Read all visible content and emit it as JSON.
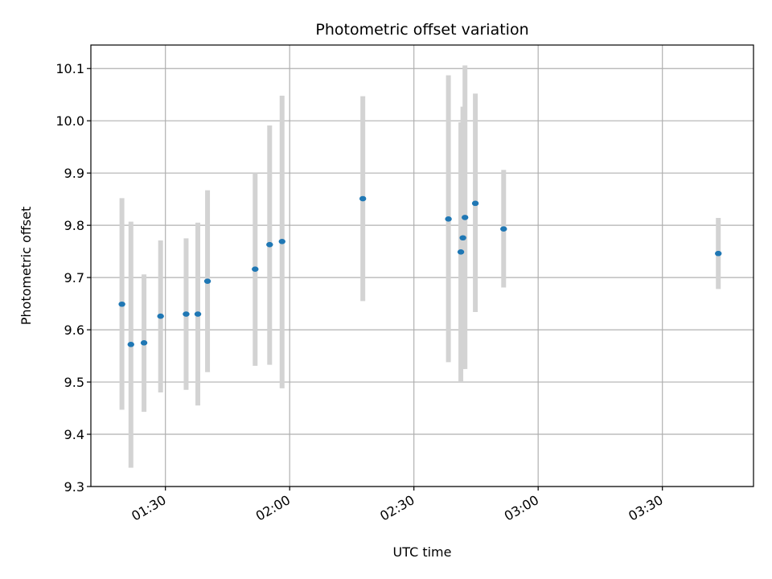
{
  "chart_data": {
    "type": "scatter",
    "title": "Photometric offset variation",
    "xlabel": "UTC time",
    "ylabel": "Photometric offset",
    "x_ticks": [
      "01:30",
      "02:00",
      "02:30",
      "03:00",
      "03:30"
    ],
    "y_ticks": [
      "9.3",
      "9.4",
      "9.5",
      "9.6",
      "9.7",
      "9.8",
      "9.9",
      "10.0",
      "10.1"
    ],
    "xlim": [
      "01:12",
      "03:52"
    ],
    "ylim": [
      9.3,
      10.145
    ],
    "grid": true,
    "marker_color": "#1f77b4",
    "errorbar_color": "#d3d3d3",
    "points": [
      {
        "t": "01:19:30",
        "y": 9.649,
        "lo": 9.447,
        "hi": 9.852
      },
      {
        "t": "01:21:40",
        "y": 9.572,
        "lo": 9.336,
        "hi": 9.807
      },
      {
        "t": "01:24:50",
        "y": 9.575,
        "lo": 9.443,
        "hi": 9.706
      },
      {
        "t": "01:28:50",
        "y": 9.626,
        "lo": 9.48,
        "hi": 9.771
      },
      {
        "t": "01:35:00",
        "y": 9.63,
        "lo": 9.485,
        "hi": 9.775
      },
      {
        "t": "01:37:50",
        "y": 9.63,
        "lo": 9.455,
        "hi": 9.805
      },
      {
        "t": "01:40:10",
        "y": 9.693,
        "lo": 9.519,
        "hi": 9.867
      },
      {
        "t": "01:51:40",
        "y": 9.716,
        "lo": 9.531,
        "hi": 9.9
      },
      {
        "t": "01:55:10",
        "y": 9.763,
        "lo": 9.533,
        "hi": 9.991
      },
      {
        "t": "01:58:10",
        "y": 9.769,
        "lo": 9.488,
        "hi": 10.048
      },
      {
        "t": "02:17:40",
        "y": 9.851,
        "lo": 9.655,
        "hi": 10.047
      },
      {
        "t": "02:38:20",
        "y": 9.812,
        "lo": 9.538,
        "hi": 10.087
      },
      {
        "t": "02:41:20",
        "y": 9.749,
        "lo": 9.5,
        "hi": 9.997
      },
      {
        "t": "02:41:50",
        "y": 9.776,
        "lo": 9.525,
        "hi": 10.027
      },
      {
        "t": "02:42:20",
        "y": 9.815,
        "lo": 9.525,
        "hi": 10.106
      },
      {
        "t": "02:44:50",
        "y": 9.842,
        "lo": 9.634,
        "hi": 10.052
      },
      {
        "t": "02:51:40",
        "y": 9.793,
        "lo": 9.681,
        "hi": 9.906
      },
      {
        "t": "03:43:30",
        "y": 9.746,
        "lo": 9.678,
        "hi": 9.814
      }
    ]
  }
}
